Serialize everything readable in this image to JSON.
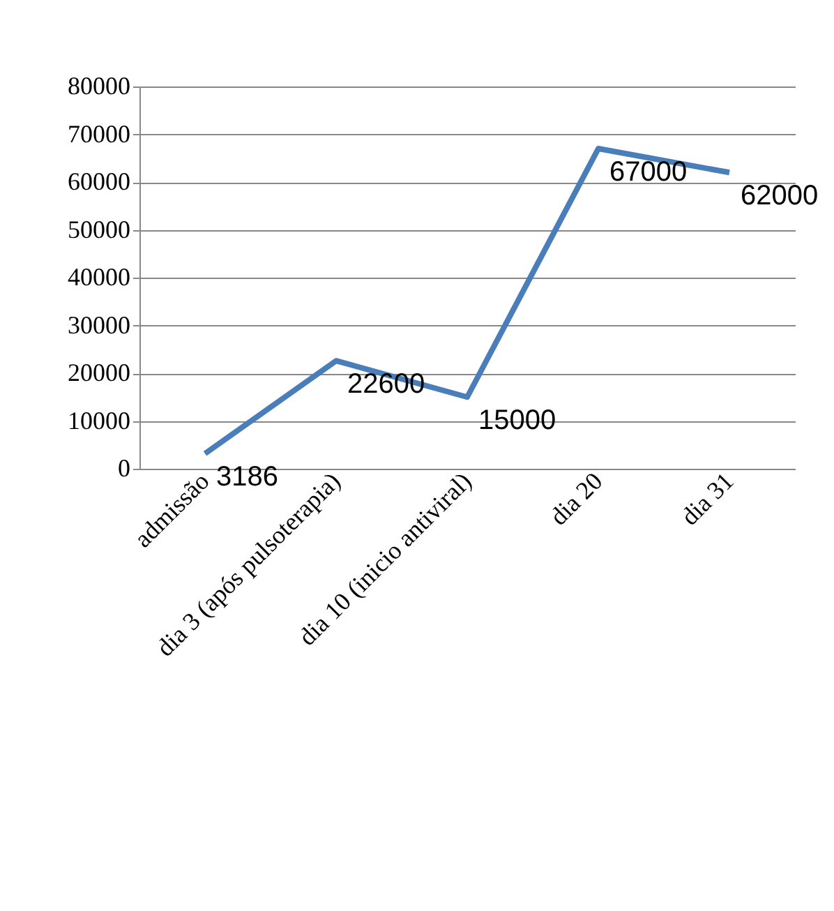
{
  "chart_data": {
    "type": "line",
    "categories": [
      "admissão",
      "dia 3 (após pulsoterapia)",
      "dia 10 (inicio antiviral)",
      "dia 20",
      "dia 31"
    ],
    "series": [
      {
        "color": "#4a7ebb",
        "values": [
          3186,
          22600,
          15000,
          67000,
          62000
        ]
      }
    ],
    "ylim": [
      0,
      80000
    ],
    "yticks": [
      0,
      10000,
      20000,
      30000,
      40000,
      50000,
      60000,
      70000,
      80000
    ],
    "grid": "y",
    "data_labels": true,
    "marker": "none",
    "line_style": "solid",
    "legend": false
  }
}
